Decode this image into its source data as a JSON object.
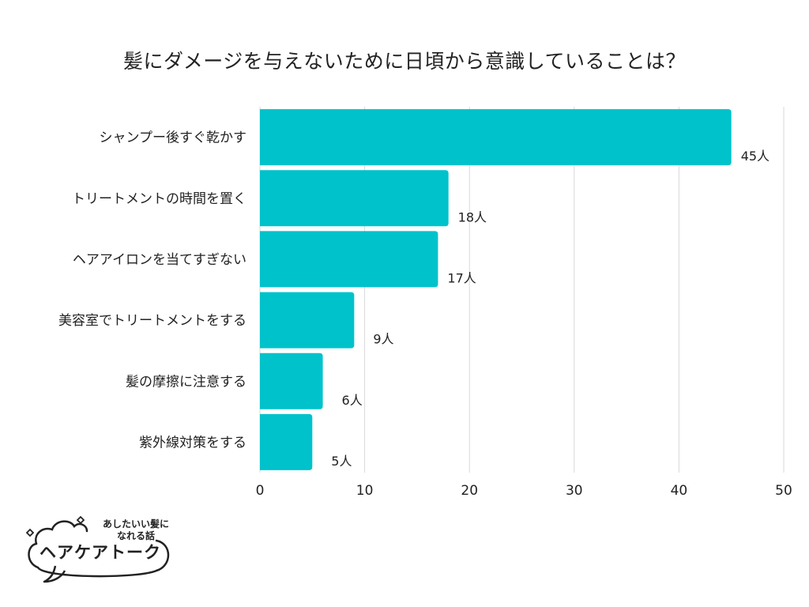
{
  "chart_data": {
    "type": "bar",
    "orientation": "horizontal",
    "title": "髪にダメージを与えないために日頃から意識していることは？",
    "categories": [
      "シャンプー後すぐ乾かす",
      "トリートメントの時間を置く",
      "ヘアアイロンを当てすぎない",
      "美容室でトリートメントをする",
      "髪の摩擦に注意する",
      "紫外線対策をする"
    ],
    "values": [
      45,
      18,
      17,
      9,
      6,
      5
    ],
    "value_labels": [
      "45人",
      "18人",
      "17人",
      "9人",
      "6人",
      "5人"
    ],
    "xlim": [
      0,
      50
    ],
    "xticks": [
      "0",
      "10",
      "20",
      "30",
      "40",
      "50"
    ],
    "grid": true,
    "legend": "none",
    "bar_color": "#00C2CB"
  },
  "logo": {
    "tagline_line1": "あしたいい髪に",
    "tagline_line2": "なれる話",
    "name": "ヘアケアトーク"
  }
}
